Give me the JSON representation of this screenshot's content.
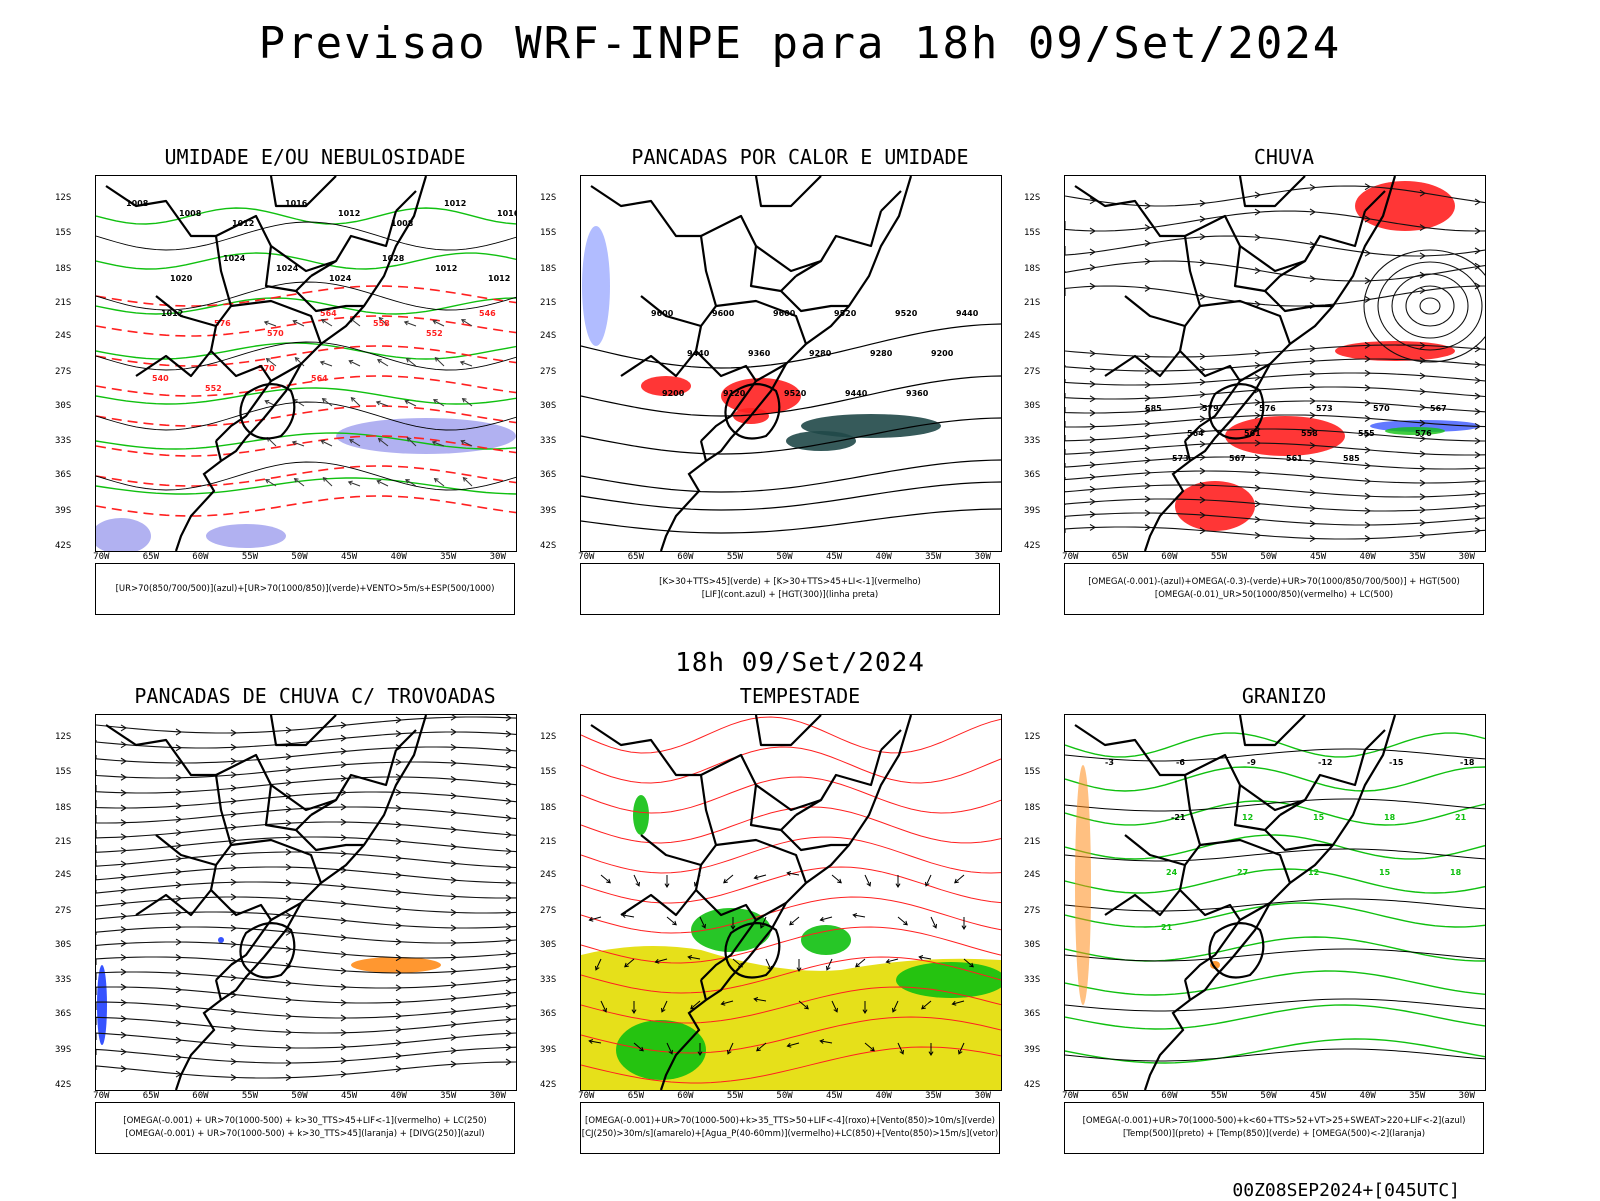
{
  "title": "Previsao WRF-INPE  para 18h 09/Set/2024",
  "mid_date": "18h 09/Set/2024",
  "run_info": "00Z08SEP2024+[045UTC]",
  "axes": {
    "lat": [
      "12S",
      "15S",
      "18S",
      "21S",
      "24S",
      "27S",
      "30S",
      "33S",
      "36S",
      "39S",
      "42S"
    ],
    "lon": [
      "70W",
      "65W",
      "60W",
      "55W",
      "50W",
      "45W",
      "40W",
      "35W",
      "30W"
    ]
  },
  "colors": {
    "red": "#ff2020",
    "green": "#10c010",
    "blue": "#2040ff",
    "lavender": "#a8a8f0",
    "orange": "#ff8c1a",
    "yellow": "#e6e01a",
    "darkteal": "#204848"
  },
  "panels": [
    {
      "title": "UMIDADE E/OU NEBULOSIDADE",
      "legend": [
        "[UR>70(850/700/500)](azul)+[UR>70(1000/850)](verde)+VENTO>5m/s+ESP(500/1000)"
      ]
    },
    {
      "title": "PANCADAS POR CALOR E UMIDADE",
      "legend": [
        "[K>30+TTS>45](verde) + [K>30+TTS>45+LI<-1](vermelho)",
        "[LIF](cont.azul) + [HGT(300)](linha preta)"
      ]
    },
    {
      "title": "CHUVA",
      "legend": [
        "[OMEGA(-0.001)-(azul)+OMEGA(-0.3)-(verde)+UR>70(1000/850/700/500)] + HGT(500)",
        "[OMEGA(-0.01)_UR>50(1000/850)(vermelho) + LC(500)"
      ]
    },
    {
      "title": "PANCADAS DE CHUVA C/ TROVOADAS",
      "legend": [
        "[OMEGA(-0.001) + UR>70(1000-500) + k>30_TTS>45+LIF<-1](vermelho) + LC(250)",
        "[OMEGA(-0.001) + UR>70(1000-500) + k>30_TTS>45](laranja) + [DIVG(250)](azul)"
      ]
    },
    {
      "title": "TEMPESTADE",
      "legend": [
        "[OMEGA(-0.001)+UR>70(1000-500)+k>35_TTS>50+LIF<-4](roxo)+[Vento(850)>10m/s](verde)",
        "[CJ(250)>30m/s](amarelo)+[Agua_P(40-60mm)](vermelho)+LC(850)+[Vento(850)>15m/s](vetor)"
      ]
    },
    {
      "title": "GRANIZO",
      "legend": [
        "[OMEGA(-0.001)+UR>70(1000-500)+k<60+TTS>52+VT>25+SWEAT>220+LIF<-2](azul)",
        "[Temp(500)](preto) + [Temp(850)](verde) + [OMEGA(500)<-2](laranja)"
      ]
    }
  ],
  "contour_labels": {
    "p1": [
      "1008",
      "1008",
      "1012",
      "1016",
      "1012",
      "1008",
      "1012",
      "1016",
      "1020",
      "1024",
      "1024",
      "1024",
      "1028",
      "1012",
      "1012",
      "1012",
      "576",
      "570",
      "564",
      "558",
      "552",
      "546",
      "540",
      "552",
      "570",
      "564"
    ],
    "p2": [
      "9600",
      "9600",
      "9600",
      "9520",
      "9520",
      "9440",
      "9440",
      "9360",
      "9280",
      "9280",
      "9200",
      "9200",
      "9120",
      "9520",
      "9440",
      "9360"
    ],
    "p3": [
      "585",
      "579",
      "576",
      "573",
      "570",
      "567",
      "564",
      "561",
      "558",
      "555",
      "576",
      "573",
      "567",
      "561",
      "585"
    ],
    "p6": [
      "-3",
      "-6",
      "-9",
      "-12",
      "-15",
      "-18",
      "-21",
      "12",
      "15",
      "18",
      "21",
      "24",
      "27",
      "12",
      "15",
      "18",
      "21"
    ]
  }
}
